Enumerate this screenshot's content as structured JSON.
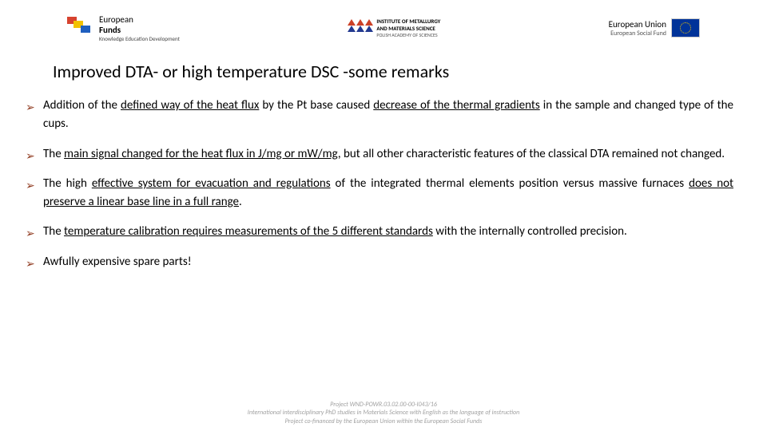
{
  "header": {
    "left": {
      "line1": "European",
      "line2": "Funds",
      "sub": "Knowledge Education Development"
    },
    "mid": {
      "line1": "INSTITUTE OF METALLURGY",
      "line2": "AND MATERIALS SCIENCE",
      "line3": "POLISH ACADEMY OF SCIENCES"
    },
    "right": {
      "line1": "European Union",
      "line2": "European Social Fund"
    }
  },
  "title": "Improved DTA- or high temperature DSC -some remarks",
  "bullets": [
    {
      "pre": "Addition of the ",
      "u1": "defined way of the heat flux",
      "mid1": " by the Pt base caused ",
      "u2": "decrease of the thermal gradients",
      "post": " in the sample and changed type of the cups."
    },
    {
      "pre": "The ",
      "u1": "main signal changed for the heat flux in J/mg or mW/mg",
      "post": ", but all other characteristic features of the classical DTA remained not changed."
    },
    {
      "pre": "The high ",
      "u1": "effective system for evacuation and regulations",
      "mid1": " of the integrated thermal elements position versus massive furnaces ",
      "u2": "does not preserve a linear base line in a full range",
      "post": "."
    },
    {
      "pre": "The ",
      "u1": "temperature calibration requires measurements of the 5 different standards",
      "post": " with the internally controlled precision."
    },
    {
      "pre": "Awfully expensive spare parts!",
      "post": ""
    }
  ],
  "footer": {
    "l1": "Project WND-POWR.03.02.00-00-I043/16",
    "l2": "International interdisciplinary PhD studies in Materials Science with English as the language of instruction",
    "l3": "Project co-financed by the European Union within the European Social Funds"
  },
  "colors": {
    "arrow": "#8f3a1f",
    "eu_blue": "#003399",
    "eu_gold": "#f2c200",
    "footer_gray": "#a0a0a0"
  }
}
